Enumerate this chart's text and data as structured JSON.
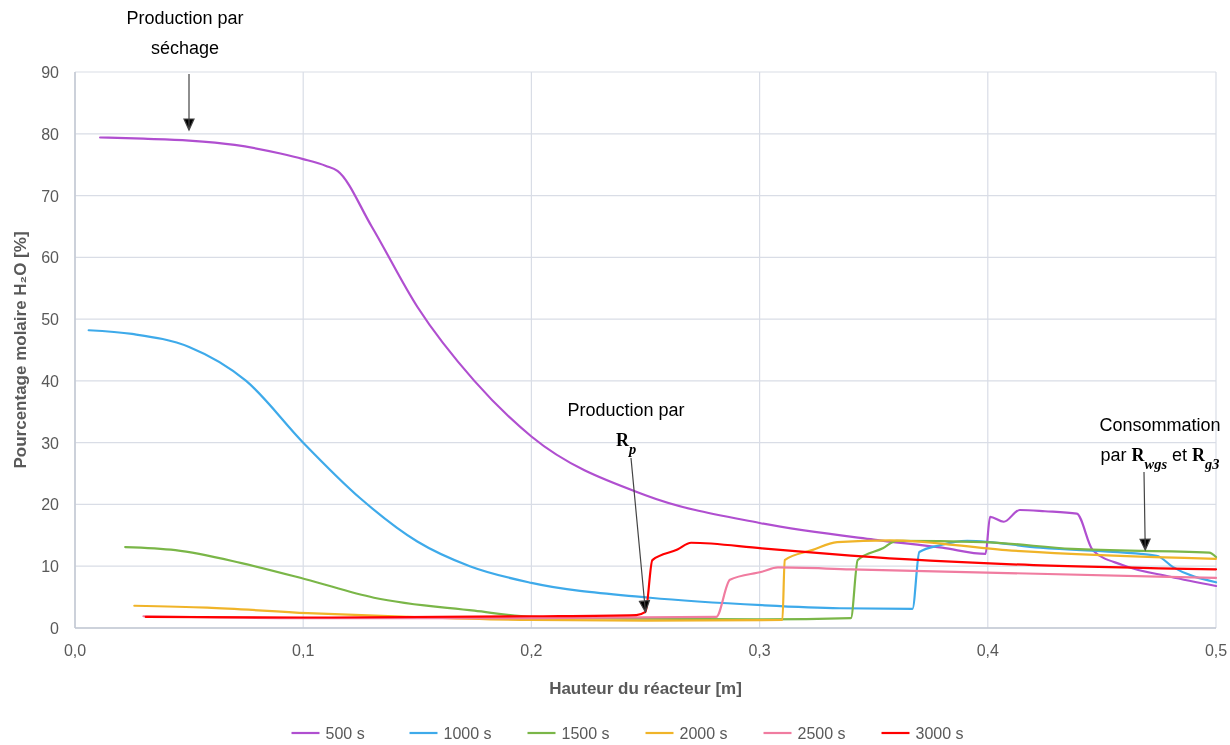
{
  "chart_data": {
    "type": "line",
    "xlabel": "Hauteur du réacteur [m]",
    "ylabel": "Pourcentage molaire H₂O [%]",
    "xlim": [
      0,
      0.5
    ],
    "xticks": [
      {
        "value": 0,
        "label": "0,0"
      },
      {
        "value": 0.1,
        "label": "0,1"
      },
      {
        "value": 0.2,
        "label": "0,2"
      },
      {
        "value": 0.3,
        "label": "0,3"
      },
      {
        "value": 0.4,
        "label": "0,4"
      },
      {
        "value": 0.5,
        "label": "0,5"
      }
    ],
    "ylim": [
      0,
      90
    ],
    "yticks": [
      0,
      10,
      20,
      30,
      40,
      50,
      60,
      70,
      80,
      90
    ],
    "grid": true,
    "legend": "bottom",
    "line_style": "solid",
    "series": [
      {
        "name": "500 s",
        "color": "#b04fd0",
        "x": [
          0.011,
          0.03,
          0.05,
          0.07,
          0.09,
          0.1,
          0.11,
          0.115,
          0.13,
          0.15,
          0.175,
          0.2,
          0.25,
          0.3,
          0.35,
          0.38,
          0.399,
          0.401,
          0.407,
          0.414,
          0.425,
          0.439,
          0.446,
          0.459,
          0.48,
          0.5
        ],
        "values": [
          79.4,
          79.2,
          78.9,
          78.2,
          76.8,
          75.9,
          74.8,
          74,
          65,
          52,
          40,
          31,
          21.5,
          17,
          14.3,
          13,
          12,
          18,
          17.2,
          19.1,
          18.9,
          18.5,
          12.6,
          10.2,
          8.3,
          6.8
        ]
      },
      {
        "name": "1000 s",
        "color": "#3eaaea",
        "x": [
          0.006,
          0.025,
          0.05,
          0.075,
          0.1,
          0.125,
          0.15,
          0.173,
          0.2,
          0.252,
          0.301,
          0.335,
          0.367,
          0.37,
          0.379,
          0.391,
          0.423,
          0.474,
          0.481,
          0.5
        ],
        "values": [
          48.2,
          47.6,
          45.5,
          40,
          30,
          21,
          14,
          10,
          7.3,
          4.9,
          3.7,
          3.2,
          3.1,
          12.3,
          13.4,
          14.1,
          13,
          11.7,
          9.9,
          7.4
        ]
      },
      {
        "name": "1500 s",
        "color": "#7ab648",
        "x": [
          0.022,
          0.044,
          0.073,
          0.101,
          0.131,
          0.175,
          0.2,
          0.25,
          0.3,
          0.34,
          0.343,
          0.354,
          0.36,
          0.398,
          0.437,
          0.497,
          0.5
        ],
        "values": [
          13.1,
          12.6,
          10.5,
          7.9,
          4.9,
          2.8,
          1.8,
          1.5,
          1.4,
          1.6,
          11,
          12.9,
          14.1,
          13.9,
          12.8,
          12.2,
          11.5
        ]
      },
      {
        "name": "2000 s",
        "color": "#f0b429",
        "x": [
          0.026,
          0.058,
          0.102,
          0.146,
          0.2,
          0.25,
          0.31,
          0.311,
          0.323,
          0.334,
          0.357,
          0.408,
          0.5
        ],
        "values": [
          3.6,
          3.3,
          2.4,
          1.8,
          1.3,
          1.2,
          1.3,
          11,
          12.6,
          13.9,
          14.2,
          12.6,
          11.2
        ]
      },
      {
        "name": "2500 s",
        "color": "#f07ca0",
        "x": [
          0.03,
          0.1,
          0.2,
          0.281,
          0.287,
          0.301,
          0.308,
          0.34,
          0.5
        ],
        "values": [
          1.9,
          1.6,
          1.6,
          1.8,
          7.8,
          9.1,
          9.8,
          9.5,
          8.1
        ]
      },
      {
        "name": "3000 s",
        "color": "#ff0000",
        "x": [
          0.031,
          0.1,
          0.2,
          0.246,
          0.25,
          0.253,
          0.264,
          0.27,
          0.301,
          0.34,
          0.5
        ],
        "values": [
          1.8,
          1.7,
          1.9,
          2.1,
          2.6,
          11,
          12.7,
          13.8,
          12.9,
          11.7,
          9.5
        ]
      }
    ],
    "annotations": [
      "Production par séchage",
      {
        "text": "Production par R$_{p}$",
        "x": 0.25,
        "y": 2.6
      },
      {
        "text": "Consommation par R$_{wgs}$ et R$_{g3}$",
        "x": 0.469,
        "y": 12.6
      }
    ]
  }
}
